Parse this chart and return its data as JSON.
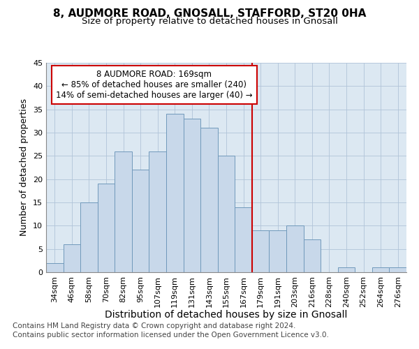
{
  "title_line1": "8, AUDMORE ROAD, GNOSALL, STAFFORD, ST20 0HA",
  "title_line2": "Size of property relative to detached houses in Gnosall",
  "xlabel": "Distribution of detached houses by size in Gnosall",
  "ylabel": "Number of detached properties",
  "bar_labels": [
    "34sqm",
    "46sqm",
    "58sqm",
    "70sqm",
    "82sqm",
    "95sqm",
    "107sqm",
    "119sqm",
    "131sqm",
    "143sqm",
    "155sqm",
    "167sqm",
    "179sqm",
    "191sqm",
    "203sqm",
    "216sqm",
    "228sqm",
    "240sqm",
    "252sqm",
    "264sqm",
    "276sqm"
  ],
  "bar_values": [
    2,
    6,
    15,
    19,
    26,
    22,
    26,
    34,
    33,
    31,
    25,
    14,
    9,
    9,
    10,
    7,
    0,
    1,
    0,
    1,
    1
  ],
  "bar_color": "#c8d8ea",
  "bar_edge_color": "#7099bb",
  "vline_index": 11.5,
  "vline_color": "#cc0000",
  "annotation_text": "8 AUDMORE ROAD: 169sqm\n← 85% of detached houses are smaller (240)\n14% of semi-detached houses are larger (40) →",
  "annotation_box_facecolor": "#ffffff",
  "annotation_box_edgecolor": "#cc0000",
  "ylim": [
    0,
    45
  ],
  "yticks": [
    0,
    5,
    10,
    15,
    20,
    25,
    30,
    35,
    40,
    45
  ],
  "grid_color": "#b0c4d8",
  "plot_bg_color": "#dce8f2",
  "fig_bg_color": "#ffffff",
  "title_fontsize": 11,
  "subtitle_fontsize": 9.5,
  "xlabel_fontsize": 10,
  "ylabel_fontsize": 9,
  "tick_fontsize": 8,
  "annot_fontsize": 8.5,
  "footer_fontsize": 7.5
}
